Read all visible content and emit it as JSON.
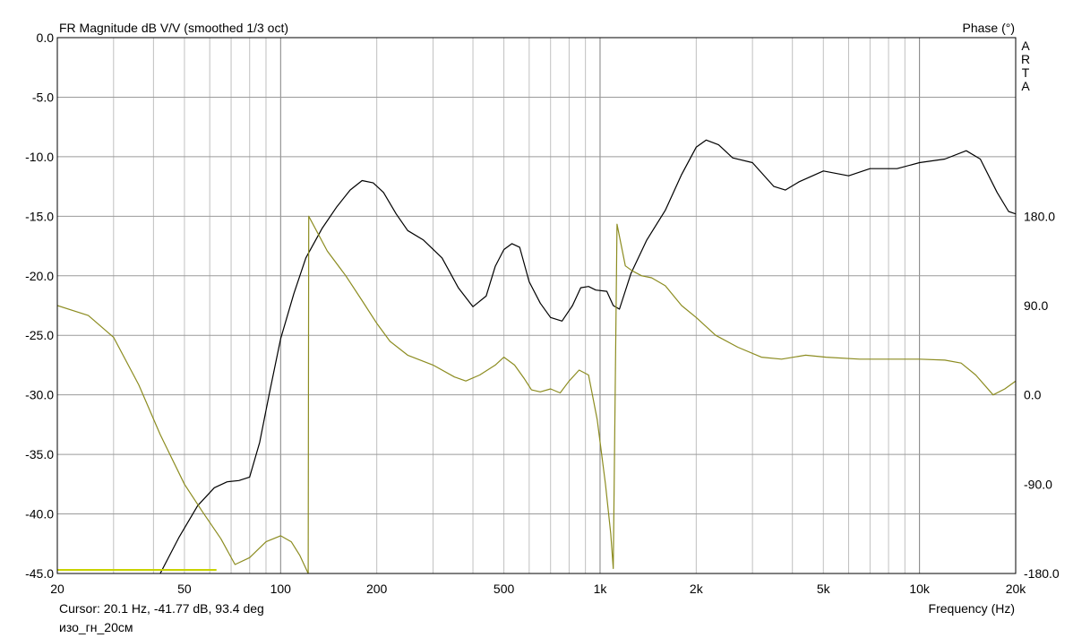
{
  "chart_data": {
    "type": "line",
    "title": "FR Magnitude dB V/V (smoothed 1/3 oct)",
    "right_axis_title": "Phase (°)",
    "watermark": [
      "A",
      "R",
      "T",
      "A"
    ],
    "xlabel": "Frequency (Hz)",
    "xscale": "log",
    "xlim": [
      20,
      20000
    ],
    "x_ticks": [
      {
        "value": 20,
        "label": "20"
      },
      {
        "value": 50,
        "label": "50"
      },
      {
        "value": 100,
        "label": "100"
      },
      {
        "value": 200,
        "label": "200"
      },
      {
        "value": 500,
        "label": "500"
      },
      {
        "value": 1000,
        "label": "1k"
      },
      {
        "value": 2000,
        "label": "2k"
      },
      {
        "value": 5000,
        "label": "5k"
      },
      {
        "value": 10000,
        "label": "10k"
      },
      {
        "value": 20000,
        "label": "20k"
      }
    ],
    "ylim": [
      -45,
      0
    ],
    "y_ticks": [
      {
        "value": 0,
        "label": "0.0"
      },
      {
        "value": -5,
        "label": "-5.0"
      },
      {
        "value": -10,
        "label": "-10.0"
      },
      {
        "value": -15,
        "label": "-15.0"
      },
      {
        "value": -20,
        "label": "-20.0"
      },
      {
        "value": -25,
        "label": "-25.0"
      },
      {
        "value": -30,
        "label": "-30.0"
      },
      {
        "value": -35,
        "label": "-35.0"
      },
      {
        "value": -40,
        "label": "-40.0"
      },
      {
        "value": -45,
        "label": "-45.0"
      }
    ],
    "y2lim": [
      -180,
      180
    ],
    "y2_ticks": [
      {
        "value": 180,
        "label": "180.0"
      },
      {
        "value": 90,
        "label": "90.0"
      },
      {
        "value": 0,
        "label": "0.0"
      },
      {
        "value": -90,
        "label": "-90.0"
      },
      {
        "value": -180,
        "label": "-180.0"
      }
    ],
    "grid": true,
    "series": [
      {
        "id": "magnitude",
        "axis": "left",
        "color": "#000000",
        "points": [
          [
            28,
            -45
          ],
          [
            32,
            -46
          ],
          [
            38,
            -46
          ],
          [
            42,
            -45
          ],
          [
            48,
            -42
          ],
          [
            55,
            -39.3
          ],
          [
            62,
            -37.8
          ],
          [
            68,
            -37.3
          ],
          [
            74,
            -37.2
          ],
          [
            80,
            -36.9
          ],
          [
            86,
            -34
          ],
          [
            92,
            -30
          ],
          [
            100,
            -25.3
          ],
          [
            110,
            -21.5
          ],
          [
            120,
            -18.5
          ],
          [
            135,
            -16
          ],
          [
            150,
            -14.2
          ],
          [
            165,
            -12.8
          ],
          [
            180,
            -12.0
          ],
          [
            195,
            -12.2
          ],
          [
            210,
            -13.0
          ],
          [
            230,
            -14.8
          ],
          [
            250,
            -16.2
          ],
          [
            280,
            -17.0
          ],
          [
            320,
            -18.5
          ],
          [
            360,
            -21
          ],
          [
            400,
            -22.6
          ],
          [
            440,
            -21.7
          ],
          [
            470,
            -19.2
          ],
          [
            500,
            -17.8
          ],
          [
            530,
            -17.3
          ],
          [
            560,
            -17.6
          ],
          [
            600,
            -20.5
          ],
          [
            650,
            -22.3
          ],
          [
            700,
            -23.5
          ],
          [
            760,
            -23.8
          ],
          [
            820,
            -22.5
          ],
          [
            870,
            -21.0
          ],
          [
            920,
            -20.9
          ],
          [
            970,
            -21.2
          ],
          [
            1050,
            -21.3
          ],
          [
            1100,
            -22.5
          ],
          [
            1150,
            -22.8
          ],
          [
            1250,
            -19.8
          ],
          [
            1400,
            -17
          ],
          [
            1600,
            -14.5
          ],
          [
            1800,
            -11.5
          ],
          [
            2000,
            -9.2
          ],
          [
            2150,
            -8.6
          ],
          [
            2350,
            -9.0
          ],
          [
            2600,
            -10.1
          ],
          [
            3000,
            -10.5
          ],
          [
            3500,
            -12.5
          ],
          [
            3800,
            -12.8
          ],
          [
            4200,
            -12.1
          ],
          [
            5000,
            -11.2
          ],
          [
            6000,
            -11.6
          ],
          [
            7000,
            -11.0
          ],
          [
            8500,
            -11.0
          ],
          [
            10000,
            -10.5
          ],
          [
            12000,
            -10.2
          ],
          [
            14000,
            -9.5
          ],
          [
            15500,
            -10.2
          ],
          [
            17500,
            -13.0
          ],
          [
            19000,
            -14.6
          ],
          [
            20000,
            -14.8
          ]
        ]
      },
      {
        "id": "phase",
        "axis": "right",
        "color": "#8c8c20",
        "points": [
          [
            20,
            90
          ],
          [
            25,
            80
          ],
          [
            30,
            58
          ],
          [
            36,
            10
          ],
          [
            42,
            -40
          ],
          [
            50,
            -90
          ],
          [
            57,
            -118
          ],
          [
            65,
            -145
          ],
          [
            72,
            -171
          ],
          [
            80,
            -164
          ],
          [
            90,
            -148
          ],
          [
            100,
            -142
          ],
          [
            108,
            -148
          ],
          [
            115,
            -162
          ],
          [
            122,
            -180
          ],
          [
            122.5,
            180
          ],
          [
            140,
            145
          ],
          [
            160,
            120
          ],
          [
            180,
            95
          ],
          [
            200,
            72
          ],
          [
            220,
            54
          ],
          [
            250,
            40
          ],
          [
            300,
            30
          ],
          [
            350,
            18
          ],
          [
            380,
            14
          ],
          [
            420,
            20
          ],
          [
            470,
            30
          ],
          [
            500,
            38
          ],
          [
            540,
            30
          ],
          [
            580,
            16
          ],
          [
            610,
            5
          ],
          [
            650,
            3
          ],
          [
            700,
            6
          ],
          [
            750,
            2
          ],
          [
            800,
            14
          ],
          [
            860,
            25
          ],
          [
            920,
            20
          ],
          [
            980,
            -25
          ],
          [
            1040,
            -90
          ],
          [
            1080,
            -140
          ],
          [
            1100,
            -175
          ],
          [
            1130,
            172
          ],
          [
            1200,
            130
          ],
          [
            1260,
            125
          ],
          [
            1350,
            120
          ],
          [
            1450,
            118
          ],
          [
            1600,
            110
          ],
          [
            1800,
            90
          ],
          [
            2000,
            78
          ],
          [
            2300,
            60
          ],
          [
            2700,
            48
          ],
          [
            3200,
            38
          ],
          [
            3700,
            36
          ],
          [
            4400,
            40
          ],
          [
            5100,
            38
          ],
          [
            6500,
            36
          ],
          [
            8000,
            36
          ],
          [
            10000,
            36
          ],
          [
            12000,
            35
          ],
          [
            13500,
            32
          ],
          [
            15000,
            20
          ],
          [
            17000,
            0
          ],
          [
            18500,
            6
          ],
          [
            20000,
            14
          ]
        ]
      },
      {
        "id": "baseline-marker",
        "axis": "left",
        "color": "#c8d200",
        "points": [
          [
            20,
            -44.7
          ],
          [
            63,
            -44.7
          ]
        ]
      }
    ]
  },
  "footer": {
    "cursor_readout": "Cursor: 20.1 Hz, -41.77 dB, 93.4 deg",
    "measurement_name": "изо_гн_20см"
  }
}
